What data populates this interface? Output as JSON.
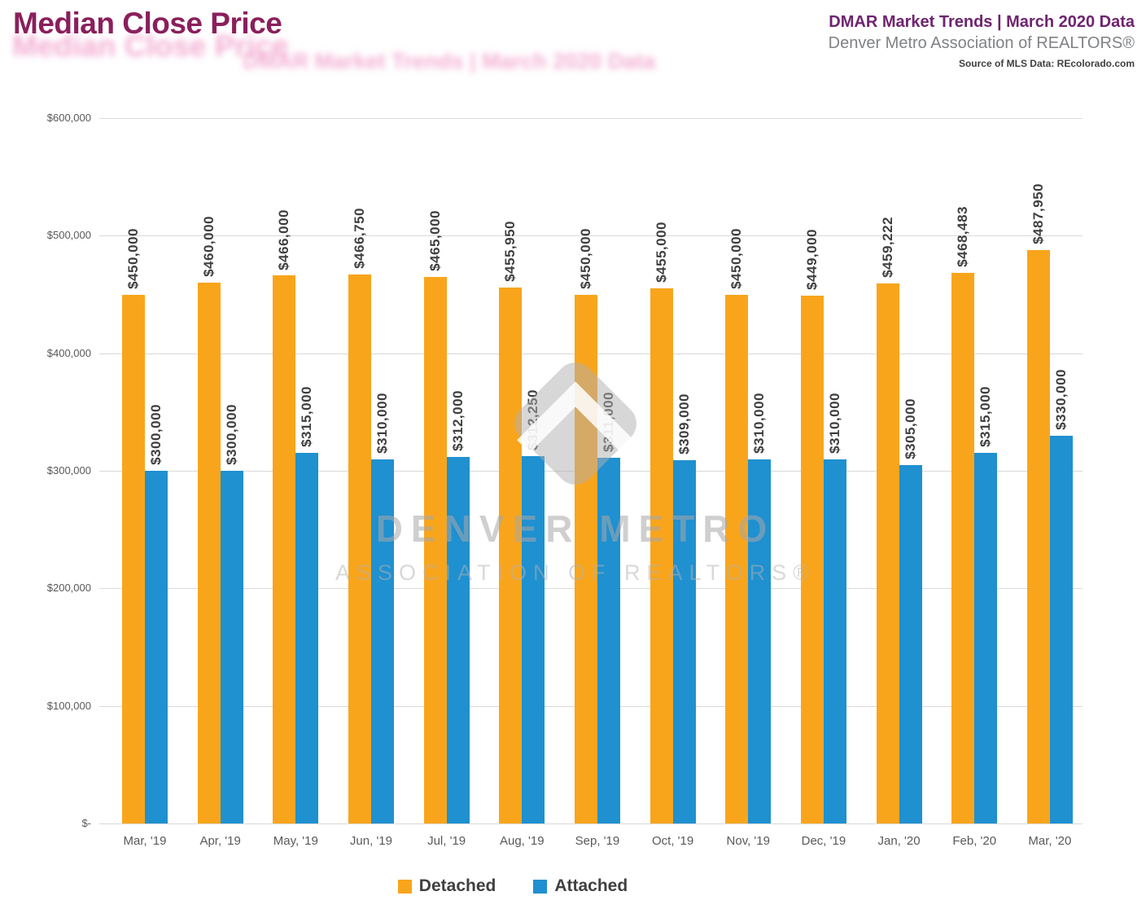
{
  "header": {
    "title": "Median Close Price",
    "ghost_title": "Median Close Price",
    "ghost_subtitle": "DMAR Market Trends | March 2020 Data",
    "right_title": "DMAR Market Trends | March 2020 Data",
    "right_subtitle": "Denver Metro Association of REALTORS®",
    "source": "Source of MLS Data: REcolorado.com"
  },
  "watermark": {
    "logo_icon": "dmar-diamond-logo",
    "line1": "DENVER METRO",
    "line2": "ASSOCIATION OF REALTORS®"
  },
  "legend": {
    "detached": "Detached",
    "attached": "Attached"
  },
  "colors": {
    "title": "#8A1F5C",
    "header_accent": "#6F2470",
    "detached": "#F9A51C",
    "attached": "#1F90D0",
    "grid": "#D9D9D9",
    "axis_text": "#595959",
    "value_label": "#3F3F3F"
  },
  "chart_data": {
    "type": "bar",
    "title": "Median Close Price",
    "xlabel": "",
    "ylabel": "",
    "grid": true,
    "legend_position": "bottom",
    "ylim": [
      0,
      600000
    ],
    "yticks": [
      {
        "value": 600000,
        "label": "$600,000"
      },
      {
        "value": 500000,
        "label": "$500,000"
      },
      {
        "value": 400000,
        "label": "$400,000"
      },
      {
        "value": 300000,
        "label": "$300,000"
      },
      {
        "value": 200000,
        "label": "$200,000"
      },
      {
        "value": 100000,
        "label": "$100,000"
      },
      {
        "value": 0,
        "label": "$-"
      }
    ],
    "categories": [
      "Mar, '19",
      "Apr, '19",
      "May, '19",
      "Jun, '19",
      "Jul, '19",
      "Aug, '19",
      "Sep, '19",
      "Oct, '19",
      "Nov, '19",
      "Dec, '19",
      "Jan, '20",
      "Feb, '20",
      "Mar, '20"
    ],
    "series": [
      {
        "name": "Detached",
        "color": "#F9A51C",
        "values": [
          450000,
          460000,
          466000,
          466750,
          465000,
          455950,
          450000,
          455000,
          450000,
          449000,
          459222,
          468483,
          487950
        ],
        "labels": [
          "$450,000",
          "$460,000",
          "$466,000",
          "$466,750",
          "$465,000",
          "$455,950",
          "$450,000",
          "$455,000",
          "$450,000",
          "$449,000",
          "$459,222",
          "$468,483",
          "$487,950"
        ]
      },
      {
        "name": "Attached",
        "color": "#1F90D0",
        "values": [
          300000,
          300000,
          315000,
          310000,
          312000,
          312250,
          311000,
          309000,
          310000,
          310000,
          305000,
          315000,
          330000
        ],
        "labels": [
          "$300,000",
          "$300,000",
          "$315,000",
          "$310,000",
          "$312,000",
          "$312,250",
          "$311,000",
          "$309,000",
          "$310,000",
          "$310,000",
          "$305,000",
          "$315,000",
          "$330,000"
        ]
      }
    ]
  }
}
